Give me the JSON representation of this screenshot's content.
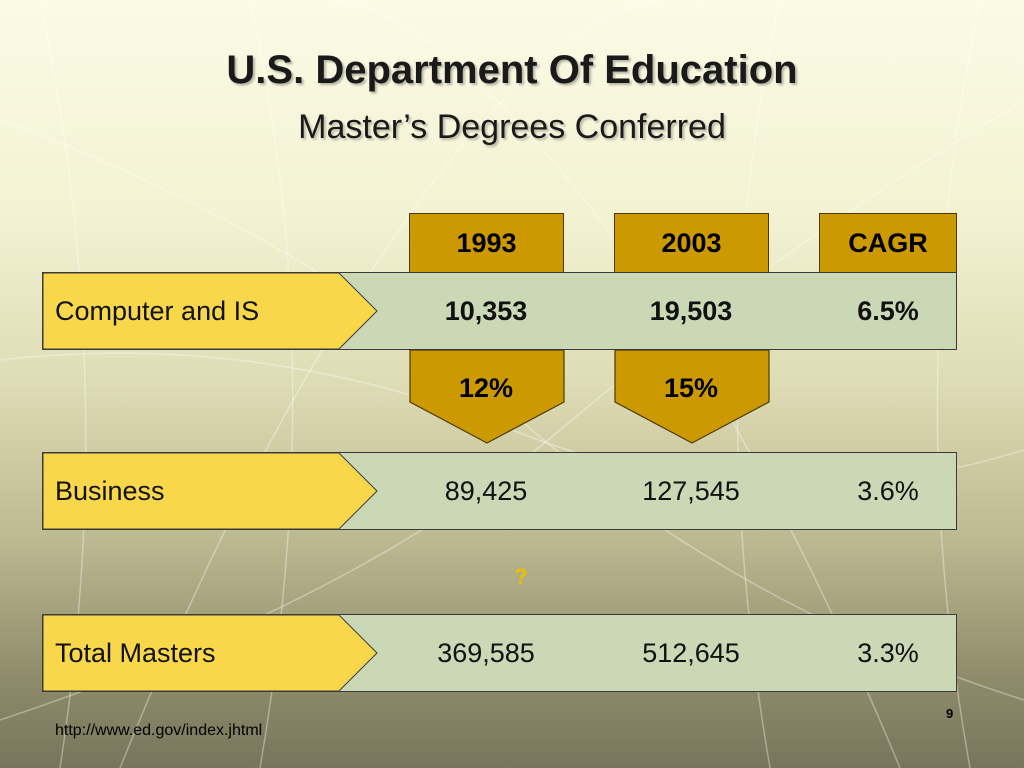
{
  "slide": {
    "title": "U.S. Department Of Education",
    "subtitle": "Master’s Degrees Conferred",
    "columns": [
      "1993",
      "2003",
      "CAGR"
    ],
    "rows": [
      {
        "label": "Computer and IS",
        "y1993": "10,353",
        "y2003": "19,503",
        "cagr": "6.5%"
      },
      {
        "label": "Business",
        "y1993": "89,425",
        "y2003": "127,545",
        "cagr": "3.6%"
      },
      {
        "label": "Total Masters",
        "y1993": "369,585",
        "y2003": "512,645",
        "cagr": "3.3%"
      }
    ],
    "share": {
      "y1993": "12%",
      "y2003": "15%"
    },
    "question_mark": "?",
    "source": "http://www.ed.gov/index.jhtml",
    "page_number": "9"
  },
  "colors": {
    "gold": "#cc9a00",
    "label_yellow": "#f8d84a",
    "row_green": "#cad8b6",
    "question_yellow": "#e8c000"
  }
}
